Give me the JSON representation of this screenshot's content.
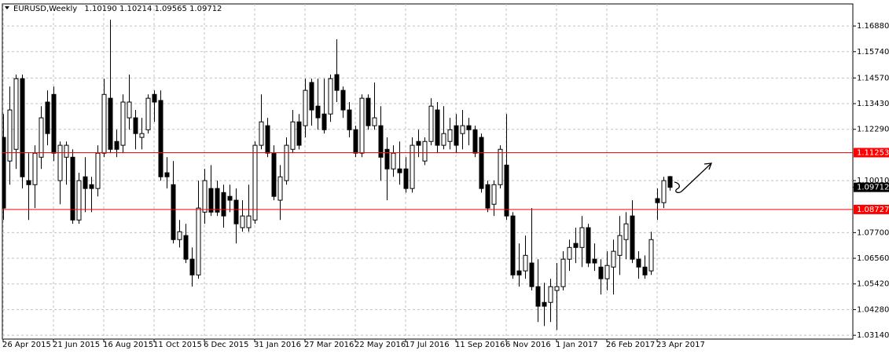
{
  "chart_data": {
    "type": "candlestick",
    "title": "EURUSD,Weekly",
    "value_labels": {
      "open": "1.10190",
      "high": "1.10214",
      "low": "1.09565",
      "close": "1.09712"
    },
    "categories": [
      "26 Apr 2015",
      null,
      null,
      null,
      null,
      null,
      null,
      null,
      "21 Jun 2015",
      null,
      null,
      null,
      null,
      null,
      null,
      null,
      "16 Aug 2015",
      null,
      null,
      null,
      null,
      null,
      null,
      null,
      "11 Oct 2015",
      null,
      null,
      null,
      null,
      null,
      null,
      null,
      "6 Dec 2015",
      null,
      null,
      null,
      null,
      null,
      null,
      null,
      "31 Jan 2016",
      null,
      null,
      null,
      null,
      null,
      null,
      null,
      "27 Mar 2016",
      null,
      null,
      null,
      null,
      null,
      null,
      null,
      "22 May 2016",
      null,
      null,
      null,
      null,
      null,
      null,
      null,
      "17 Jul 2016",
      null,
      null,
      null,
      null,
      null,
      null,
      null,
      "11 Sep 2016",
      null,
      null,
      null,
      null,
      null,
      null,
      null,
      "6 Nov 2016",
      null,
      null,
      null,
      null,
      null,
      null,
      null,
      "1 Jan 2017",
      null,
      null,
      null,
      null,
      null,
      null,
      null,
      "26 Feb 2017",
      null,
      null,
      null,
      null,
      null,
      null,
      null,
      "23 Apr 2017",
      null,
      null
    ],
    "open": [
      1.1193,
      1.1088,
      1.114,
      1.1454,
      1.1001,
      1.0983,
      1.1105,
      1.135,
      1.1384,
      1.1001,
      1.1105,
      1.1105,
      1.0826,
      1.1018,
      1.0983,
      1.0966,
      1.1123,
      1.1367,
      1.1175,
      1.1158,
      1.128,
      1.128,
      1.1193,
      1.1227,
      1.1384,
      1.1357,
      1.1036,
      1.0983,
      1.0739,
      1.0757,
      1.0652,
      1.0582,
      1.0861,
      1.0966,
      1.0966,
      1.0948,
      1.0931,
      1.0914,
      1.0792,
      1.0792,
      1.0826,
      1.1158,
      1.1245,
      1.1123,
      1.0914,
      1.1001,
      1.114,
      1.1262,
      1.1245,
      1.1437,
      1.1332,
      1.1297,
      1.1297,
      1.1472,
      1.1402,
      1.1315,
      1.1227,
      1.1123,
      1.1367,
      1.1245,
      1.1245,
      1.114,
      1.1053,
      1.1053,
      1.1053,
      1.0966,
      1.1175,
      1.1088,
      1.1175,
      1.1315,
      1.1158,
      1.1175,
      1.1245,
      1.121,
      1.1245,
      1.1227,
      1.1193,
      1.0983,
      1.0896,
      1.0983,
      1.107,
      1.0844,
      1.06,
      1.06,
      1.0635,
      1.053,
      1.046,
      1.046,
      1.0513,
      1.053,
      1.0652,
      1.0722,
      1.0704,
      1.0792,
      1.0652,
      1.0617,
      1.0565,
      1.0617,
      1.0669,
      1.0739,
      1.0844,
      1.0652,
      1.0617,
      1.06,
      1.0921,
      1.0903,
      1.1019
    ],
    "high": [
      1.1297,
      1.1419,
      1.1472,
      1.1472,
      1.1123,
      1.1158,
      1.1332,
      1.1402,
      1.1419,
      1.1175,
      1.1175,
      1.114,
      1.1036,
      1.1105,
      1.1018,
      1.1158,
      1.1454,
      1.1716,
      1.1227,
      1.1384,
      1.1472,
      1.1315,
      1.128,
      1.1384,
      1.1402,
      1.1402,
      1.1105,
      1.1088,
      1.0826,
      1.0809,
      1.0704,
      1.1001,
      1.1053,
      1.107,
      1.1001,
      1.0983,
      1.0983,
      1.0966,
      1.0914,
      1.0983,
      1.1175,
      1.1384,
      1.128,
      1.1158,
      1.107,
      1.1193,
      1.1315,
      1.1297,
      1.1454,
      1.1454,
      1.1454,
      1.1454,
      1.1472,
      1.1629,
      1.1419,
      1.135,
      1.1245,
      1.1384,
      1.1384,
      1.1437,
      1.1332,
      1.1193,
      1.1158,
      1.1175,
      1.1105,
      1.1193,
      1.1227,
      1.1193,
      1.1367,
      1.135,
      1.1332,
      1.128,
      1.1297,
      1.1315,
      1.128,
      1.1245,
      1.121,
      1.1001,
      1.1001,
      1.1158,
      1.1297,
      1.0861,
      1.0722,
      1.0757,
      1.0879,
      1.0652,
      1.0547,
      1.0565,
      1.0635,
      1.0687,
      1.0739,
      1.0792,
      1.0844,
      1.0809,
      1.0722,
      1.0652,
      1.0687,
      1.0739,
      1.0844,
      1.0861,
      1.0914,
      1.0687,
      1.0669,
      1.0774,
      1.0966,
      1.1018,
      1.10214
    ],
    "low": [
      1.0826,
      1.0983,
      1.1053,
      1.0966,
      1.0826,
      1.0879,
      1.1053,
      1.1158,
      1.1088,
      1.0896,
      1.0983,
      1.0809,
      1.0809,
      1.0861,
      1.0861,
      1.0931,
      1.1105,
      1.1123,
      1.1105,
      1.1123,
      1.1227,
      1.114,
      1.114,
      1.121,
      1.1262,
      1.1001,
      1.0966,
      1.0722,
      1.0704,
      1.0635,
      1.053,
      1.0565,
      1.0809,
      1.0844,
      1.0844,
      1.0792,
      1.0861,
      1.0722,
      1.0774,
      1.0774,
      1.0809,
      1.114,
      1.1105,
      1.0914,
      1.0826,
      1.0983,
      1.1123,
      1.114,
      1.1193,
      1.1245,
      1.1227,
      1.121,
      1.1262,
      1.135,
      1.128,
      1.1193,
      1.1105,
      1.1105,
      1.1227,
      1.1227,
      1.1001,
      1.0914,
      1.1018,
      1.0983,
      1.0948,
      1.0948,
      1.1105,
      1.107,
      1.1158,
      1.1123,
      1.114,
      1.114,
      1.1123,
      1.114,
      1.1158,
      1.1105,
      1.0948,
      1.0861,
      1.0844,
      1.0966,
      1.0826,
      1.0565,
      1.053,
      1.0565,
      1.0513,
      1.0373,
      1.0355,
      1.0373,
      1.0338,
      1.0513,
      1.06,
      1.0635,
      1.0617,
      1.0617,
      1.06,
      1.0495,
      1.0513,
      1.0495,
      1.0582,
      1.0652,
      1.0635,
      1.0565,
      1.0565,
      1.0582,
      1.0826,
      1.0879,
      1.09565
    ],
    "close": [
      1.0879,
      1.1315,
      1.1454,
      1.1018,
      1.0983,
      1.1123,
      1.128,
      1.121,
      1.1123,
      1.1158,
      1.1158,
      1.0826,
      1.1001,
      1.0966,
      1.0966,
      1.1123,
      1.1384,
      1.114,
      1.114,
      1.135,
      1.135,
      1.121,
      1.121,
      1.1367,
      1.135,
      1.1018,
      1.1018,
      1.0739,
      1.0774,
      1.0652,
      1.0582,
      1.0879,
      1.1001,
      1.0861,
      1.0861,
      1.0844,
      1.0914,
      1.0809,
      1.0844,
      1.0844,
      1.1158,
      1.1262,
      1.1123,
      1.0931,
      1.1018,
      1.1158,
      1.1262,
      1.1158,
      1.1402,
      1.1315,
      1.128,
      1.1227,
      1.1454,
      1.1402,
      1.1315,
      1.1227,
      1.1123,
      1.1367,
      1.1245,
      1.128,
      1.1105,
      1.1053,
      1.1123,
      1.1036,
      1.0966,
      1.1158,
      1.1158,
      1.1175,
      1.1332,
      1.1158,
      1.121,
      1.1227,
      1.1158,
      1.1245,
      1.1227,
      1.1123,
      1.0966,
      1.0879,
      1.0983,
      1.114,
      1.0844,
      1.0582,
      1.0582,
      1.0669,
      1.053,
      1.0443,
      1.0443,
      1.053,
      1.053,
      1.0652,
      1.0704,
      1.0704,
      1.0792,
      1.0635,
      1.0635,
      1.0565,
      1.0624,
      1.0687,
      1.0757,
      1.0809,
      1.0652,
      1.0617,
      1.0582,
      1.0739,
      1.0903,
      1.1001,
      1.09712
    ],
    "up_color": "#ffffff",
    "down_color": "#000000",
    "wick_color": "#000000",
    "ylim": [
      1.0297,
      1.1786
    ],
    "yticks": [
      {
        "value": 1.1688,
        "label": "1.16880"
      },
      {
        "value": 1.1574,
        "label": "1.15740"
      },
      {
        "value": 1.1457,
        "label": "1.14570"
      },
      {
        "value": 1.1343,
        "label": "1.13430"
      },
      {
        "value": 1.1229,
        "label": "1.12290"
      },
      {
        "value": 1.1001,
        "label": "1.10010"
      },
      {
        "value": 1.077,
        "label": "1.07700"
      },
      {
        "value": 1.0656,
        "label": "1.06560"
      },
      {
        "value": 1.0542,
        "label": "1.05420"
      },
      {
        "value": 1.0428,
        "label": "1.04280"
      },
      {
        "value": 1.0314,
        "label": "1.03140"
      }
    ],
    "hlines": [
      {
        "value": 1.11253,
        "label": "1.11253"
      },
      {
        "value": 1.08727,
        "label": "1.08727"
      }
    ],
    "hline_color": "#ff0000",
    "grid": true
  }
}
